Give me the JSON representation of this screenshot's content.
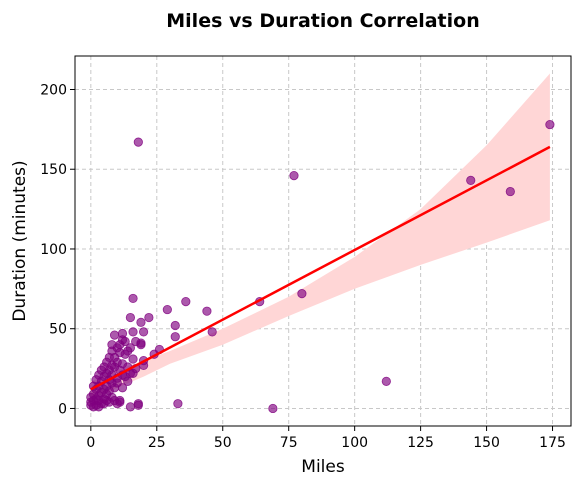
{
  "chart_data": {
    "type": "scatter",
    "title": "Miles vs Duration Correlation",
    "xlabel": "Miles",
    "ylabel": "Duration (minutes)",
    "xlim": [
      -6,
      182
    ],
    "ylim": [
      -11,
      221
    ],
    "x_ticks": [
      0,
      25,
      50,
      75,
      100,
      125,
      150,
      175
    ],
    "y_ticks": [
      0,
      50,
      100,
      150,
      200
    ],
    "grid": true,
    "grid_style": "dashed",
    "colors": {
      "points": "#800080",
      "regression_line": "#ff0000",
      "confidence_band": "#ffd6d6",
      "grid": "#c8c8c8"
    },
    "points": [
      [
        174,
        178
      ],
      [
        159,
        136
      ],
      [
        144,
        143
      ],
      [
        112,
        17
      ],
      [
        80,
        72
      ],
      [
        77,
        146
      ],
      [
        69,
        0
      ],
      [
        64,
        67
      ],
      [
        46,
        48
      ],
      [
        44,
        61
      ],
      [
        36,
        67
      ],
      [
        33,
        3
      ],
      [
        32,
        52
      ],
      [
        32,
        45
      ],
      [
        29,
        62
      ],
      [
        26,
        37
      ],
      [
        24,
        34
      ],
      [
        22,
        57
      ],
      [
        20,
        48
      ],
      [
        20,
        27
      ],
      [
        19,
        54
      ],
      [
        19,
        41
      ],
      [
        18,
        167
      ],
      [
        18,
        3
      ],
      [
        18,
        2
      ],
      [
        17,
        42
      ],
      [
        16,
        69
      ],
      [
        16,
        48
      ],
      [
        16,
        31
      ],
      [
        15,
        57
      ],
      [
        15,
        38
      ],
      [
        15,
        22
      ],
      [
        15,
        1
      ],
      [
        14,
        36
      ],
      [
        14,
        26
      ],
      [
        14,
        17
      ],
      [
        13,
        42
      ],
      [
        13,
        34
      ],
      [
        12,
        43
      ],
      [
        12,
        28
      ],
      [
        12,
        21
      ],
      [
        12,
        13
      ],
      [
        11,
        40
      ],
      [
        11,
        35
      ],
      [
        11,
        24
      ],
      [
        11,
        5
      ],
      [
        10,
        38
      ],
      [
        10,
        29
      ],
      [
        10,
        19
      ],
      [
        10,
        16
      ],
      [
        10,
        3
      ],
      [
        9,
        46
      ],
      [
        9,
        32
      ],
      [
        9,
        26
      ],
      [
        9,
        13
      ],
      [
        8,
        40
      ],
      [
        8,
        36
      ],
      [
        8,
        27
      ],
      [
        8,
        21
      ],
      [
        8,
        16
      ],
      [
        8,
        7
      ],
      [
        7,
        32
      ],
      [
        7,
        24
      ],
      [
        7,
        18
      ],
      [
        7,
        11
      ],
      [
        7,
        4
      ],
      [
        6,
        29
      ],
      [
        6,
        22
      ],
      [
        6,
        14
      ],
      [
        6,
        9
      ],
      [
        5,
        26
      ],
      [
        5,
        20
      ],
      [
        5,
        12
      ],
      [
        5,
        6
      ],
      [
        4,
        24
      ],
      [
        4,
        17
      ],
      [
        4,
        10
      ],
      [
        4,
        3
      ],
      [
        3,
        21
      ],
      [
        3,
        14
      ],
      [
        3,
        8
      ],
      [
        3,
        1
      ],
      [
        2,
        18
      ],
      [
        2,
        12
      ],
      [
        2,
        6
      ],
      [
        2,
        2
      ],
      [
        1,
        14
      ],
      [
        1,
        9
      ],
      [
        1,
        5
      ],
      [
        1,
        1
      ],
      [
        0,
        7
      ],
      [
        0,
        4
      ],
      [
        0,
        2
      ],
      [
        5,
        3
      ],
      [
        3,
        5
      ],
      [
        6,
        5
      ],
      [
        9,
        5
      ],
      [
        11,
        4
      ],
      [
        13,
        20
      ],
      [
        16,
        22
      ],
      [
        17,
        25
      ],
      [
        19,
        40
      ],
      [
        20,
        30
      ],
      [
        12,
        47
      ]
    ],
    "regression": {
      "x": [
        0,
        174
      ],
      "y": [
        12,
        164
      ]
    },
    "confidence_band": {
      "x": [
        0,
        5,
        10,
        20,
        30,
        50,
        75,
        100,
        125,
        150,
        174
      ],
      "upper": [
        17,
        20,
        24,
        30,
        36,
        50,
        70,
        95,
        125,
        165,
        210
      ],
      "lower": [
        7,
        9,
        13,
        20,
        28,
        40,
        58,
        75,
        90,
        104,
        118
      ]
    }
  }
}
